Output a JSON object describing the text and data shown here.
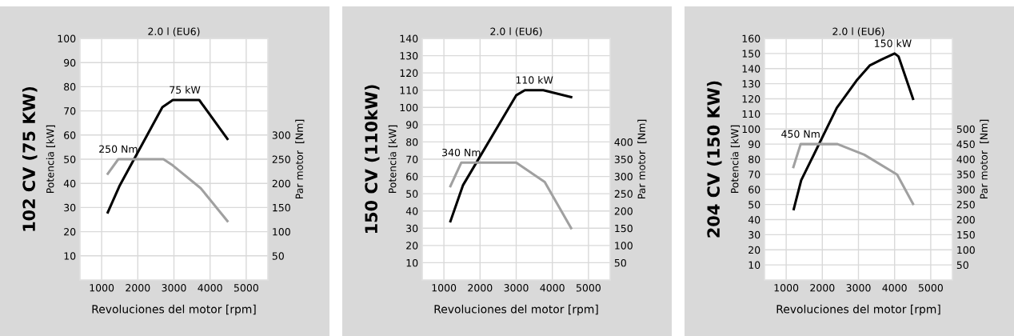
{
  "chart_data": [
    {
      "type": "line",
      "title": "102 CV (75 KW)",
      "subtitle": "2.0 l (EU6)",
      "xlabel": "Revoluciones del motor [rpm]",
      "ylabel": "Potencia [kW]",
      "y2label": "Par motor  [Nm]",
      "xlim": [
        400,
        5600
      ],
      "xticks": [
        1000,
        2000,
        3000,
        4000,
        5000
      ],
      "ylim": [
        0,
        100
      ],
      "yticks": [
        10,
        20,
        30,
        40,
        50,
        60,
        70,
        80,
        90,
        100
      ],
      "y2lim": [
        0,
        500
      ],
      "y2ticks": [
        50,
        100,
        150,
        200,
        250,
        300
      ],
      "grid": true,
      "marker": "none",
      "line_style": "solid",
      "series": [
        {
          "color": "#000000",
          "x": [
            1170,
            1490,
            2680,
            2970,
            3700,
            4480
          ],
          "values": [
            28,
            38.8,
            71.5,
            74.5,
            74.5,
            58.4
          ]
        },
        {
          "color": "#a0a0a0",
          "axis": "y2",
          "x": [
            1170,
            1460,
            2710,
            2970,
            3740,
            4480
          ],
          "values": [
            220,
            250,
            250,
            237,
            190,
            122
          ]
        }
      ],
      "annotations": [
        {
          "text": "75 kW",
          "x": 3300,
          "y": 74.5
        },
        {
          "text": "250 Nm",
          "x": 1460,
          "y": 50
        }
      ]
    },
    {
      "type": "line",
      "title": "150 CV (110kW)",
      "subtitle": "2.0 l (EU6)",
      "xlabel": "Revoluciones del motor [rpm]",
      "ylabel": "Potencia [kW]",
      "y2label": "Par motor  [Nm]",
      "xlim": [
        400,
        5600
      ],
      "xticks": [
        1000,
        2000,
        3000,
        4000,
        5000
      ],
      "ylim": [
        0,
        140
      ],
      "yticks": [
        10,
        20,
        30,
        40,
        50,
        60,
        70,
        80,
        90,
        100,
        110,
        120,
        130,
        140
      ],
      "y2lim": [
        0,
        700
      ],
      "y2ticks": [
        50,
        100,
        150,
        200,
        250,
        300,
        350,
        400
      ],
      "grid": true,
      "marker": "none",
      "line_style": "solid",
      "series": [
        {
          "color": "#000000",
          "x": [
            1180,
            1530,
            3000,
            3240,
            3750,
            4520
          ],
          "values": [
            34,
            55,
            107,
            110,
            110,
            106
          ]
        },
        {
          "color": "#a0a0a0",
          "axis": "y2",
          "x": [
            1180,
            1480,
            3000,
            3790,
            4520
          ],
          "values": [
            272,
            340,
            340,
            284,
            150
          ]
        }
      ],
      "annotations": [
        {
          "text": "110 kW",
          "x": 3500,
          "y": 110
        },
        {
          "text": "340 Nm",
          "x": 1480,
          "y": 68
        }
      ]
    },
    {
      "type": "line",
      "title": "204 CV (150 KW)",
      "subtitle": "2.0 l (EU6)",
      "xlabel": "Revoluciones del motor [rpm]",
      "ylabel": "Potencia [kW]",
      "y2label": "Par motor  [Nm]",
      "xlim": [
        400,
        5600
      ],
      "xticks": [
        1000,
        2000,
        3000,
        4000,
        5000
      ],
      "ylim": [
        0,
        160
      ],
      "yticks": [
        10,
        20,
        30,
        40,
        50,
        60,
        70,
        80,
        90,
        100,
        110,
        120,
        130,
        140,
        150,
        160
      ],
      "y2lim": [
        0,
        800
      ],
      "y2ticks": [
        50,
        100,
        150,
        200,
        250,
        300,
        350,
        400,
        450,
        500
      ],
      "grid": true,
      "marker": "none",
      "line_style": "solid",
      "series": [
        {
          "color": "#000000",
          "x": [
            1210,
            1415,
            2400,
            2945,
            3310,
            3640,
            4000,
            4110,
            4510
          ],
          "values": [
            47,
            66,
            114,
            132,
            142,
            146,
            150,
            148,
            120
          ]
        },
        {
          "color": "#a0a0a0",
          "axis": "y2",
          "x": [
            1200,
            1400,
            2420,
            3160,
            4070,
            4510
          ],
          "values": [
            374,
            450,
            450,
            415,
            349,
            252
          ]
        }
      ],
      "annotations": [
        {
          "text": "150 kW",
          "x": 3950,
          "y": 150
        },
        {
          "text": "450 Nm",
          "x": 1400,
          "y": 90
        }
      ]
    }
  ]
}
